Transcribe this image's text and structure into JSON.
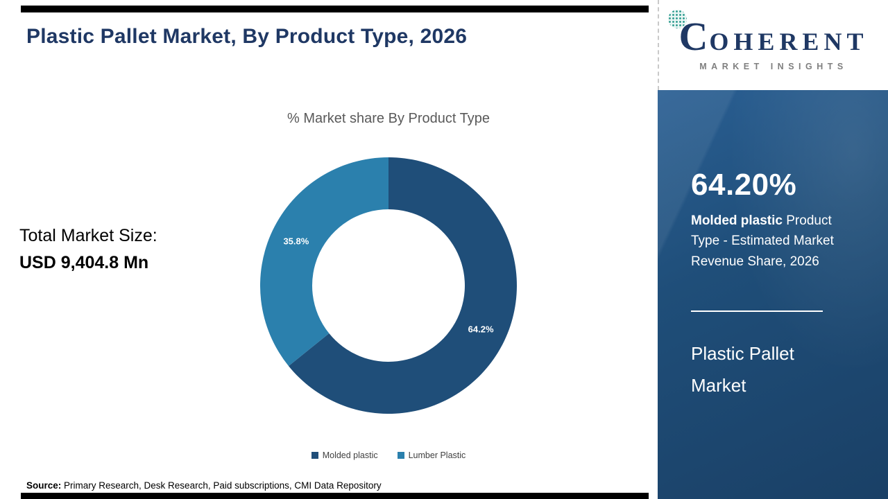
{
  "header": {
    "title": "Plastic Pallet Market, By Product Type, 2026"
  },
  "logo": {
    "c": "C",
    "rest": "OHERENT",
    "tagline": "MARKET INSIGHTS"
  },
  "left_panel": {
    "total_label": "Total Market Size:",
    "total_value": "USD 9,404.8 Mn"
  },
  "chart_data": {
    "type": "pie",
    "donut": true,
    "title": "% Market share By Product Type",
    "categories": [
      "Molded plastic",
      "Lumber Plastic"
    ],
    "values": [
      64.2,
      35.8
    ],
    "labels": [
      "64.2%",
      "35.8%"
    ],
    "colors": [
      "#1f4e79",
      "#2b80ad"
    ],
    "legend_position": "bottom",
    "start_angle_deg": -90,
    "direction": "clockwise"
  },
  "sidebar": {
    "stat": "64.20%",
    "desc_bold": "Molded plastic",
    "desc_rest": " Product Type - Estimated Market Revenue Share, 2026",
    "footer_title": "Plastic Pallet Market"
  },
  "source": {
    "label": "Source:",
    "text": " Primary Research, Desk Research, Paid subscriptions, CMI Data Repository"
  }
}
